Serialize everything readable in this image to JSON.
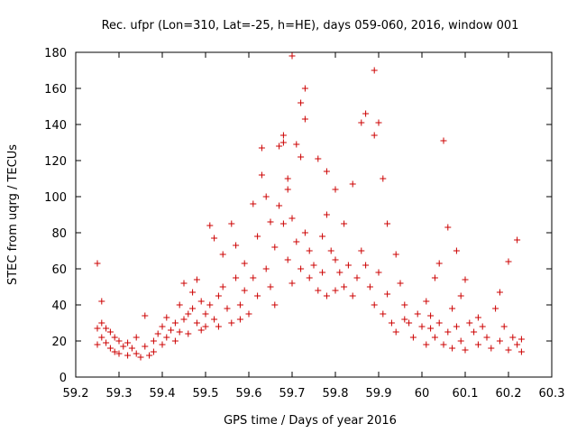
{
  "chart_data": {
    "type": "scatter",
    "title": "Rec. ufpr (Lon=310, Lat=-25, h=HE), days 059-060, 2016, window 001",
    "xlabel": "GPS time / Days of year 2016",
    "ylabel": "STEC from uqrg / TECUs",
    "xlim": [
      59.2,
      60.3
    ],
    "ylim": [
      0,
      180
    ],
    "xticks": [
      "59.2",
      "59.3",
      "59.4",
      "59.5",
      "59.6",
      "59.7",
      "59.8",
      "59.9",
      "60",
      "60.1",
      "60.2",
      "60.3"
    ],
    "yticks": [
      "0",
      "20",
      "40",
      "60",
      "80",
      "100",
      "120",
      "140",
      "160",
      "180"
    ],
    "grid": false,
    "legend": "none",
    "marker": "+",
    "series": [
      {
        "color": "#cc0000",
        "points": [
          [
            59.25,
            63
          ],
          [
            59.25,
            27
          ],
          [
            59.25,
            18
          ],
          [
            59.26,
            42
          ],
          [
            59.26,
            30
          ],
          [
            59.26,
            22
          ],
          [
            59.27,
            27
          ],
          [
            59.27,
            19
          ],
          [
            59.28,
            25
          ],
          [
            59.28,
            16
          ],
          [
            59.29,
            22
          ],
          [
            59.29,
            14
          ],
          [
            59.3,
            20
          ],
          [
            59.3,
            13
          ],
          [
            59.31,
            17
          ],
          [
            59.32,
            19
          ],
          [
            59.32,
            12
          ],
          [
            59.33,
            16
          ],
          [
            59.34,
            22
          ],
          [
            59.34,
            13
          ],
          [
            59.35,
            11
          ],
          [
            59.36,
            17
          ],
          [
            59.36,
            34
          ],
          [
            59.37,
            12
          ],
          [
            59.38,
            20
          ],
          [
            59.38,
            14
          ],
          [
            59.39,
            24
          ],
          [
            59.4,
            18
          ],
          [
            59.4,
            28
          ],
          [
            59.41,
            33
          ],
          [
            59.41,
            22
          ],
          [
            59.42,
            26
          ],
          [
            59.43,
            30
          ],
          [
            59.43,
            20
          ],
          [
            59.44,
            40
          ],
          [
            59.44,
            25
          ],
          [
            59.45,
            52
          ],
          [
            59.45,
            32
          ],
          [
            59.46,
            35
          ],
          [
            59.46,
            24
          ],
          [
            59.47,
            38
          ],
          [
            59.47,
            47
          ],
          [
            59.48,
            30
          ],
          [
            59.48,
            54
          ],
          [
            59.49,
            42
          ],
          [
            59.49,
            26
          ],
          [
            59.5,
            35
          ],
          [
            59.5,
            28
          ],
          [
            59.51,
            84
          ],
          [
            59.51,
            40
          ],
          [
            59.52,
            77
          ],
          [
            59.52,
            32
          ],
          [
            59.53,
            45
          ],
          [
            59.53,
            28
          ],
          [
            59.54,
            68
          ],
          [
            59.54,
            50
          ],
          [
            59.55,
            38
          ],
          [
            59.56,
            85
          ],
          [
            59.56,
            30
          ],
          [
            59.57,
            73
          ],
          [
            59.57,
            55
          ],
          [
            59.58,
            40
          ],
          [
            59.58,
            32
          ],
          [
            59.59,
            63
          ],
          [
            59.59,
            48
          ],
          [
            59.6,
            35
          ],
          [
            59.61,
            96
          ],
          [
            59.61,
            55
          ],
          [
            59.62,
            78
          ],
          [
            59.62,
            45
          ],
          [
            59.63,
            127
          ],
          [
            59.63,
            112
          ],
          [
            59.64,
            100
          ],
          [
            59.64,
            60
          ],
          [
            59.65,
            86
          ],
          [
            59.65,
            50
          ],
          [
            59.66,
            72
          ],
          [
            59.66,
            40
          ],
          [
            59.67,
            128
          ],
          [
            59.67,
            95
          ],
          [
            59.68,
            134
          ],
          [
            59.68,
            130
          ],
          [
            59.68,
            85
          ],
          [
            59.69,
            110
          ],
          [
            59.69,
            104
          ],
          [
            59.69,
            65
          ],
          [
            59.7,
            178
          ],
          [
            59.7,
            88
          ],
          [
            59.7,
            52
          ],
          [
            59.71,
            129
          ],
          [
            59.71,
            75
          ],
          [
            59.72,
            152
          ],
          [
            59.72,
            122
          ],
          [
            59.72,
            60
          ],
          [
            59.73,
            160
          ],
          [
            59.73,
            143
          ],
          [
            59.73,
            80
          ],
          [
            59.74,
            70
          ],
          [
            59.74,
            55
          ],
          [
            59.75,
            62
          ],
          [
            59.76,
            121
          ],
          [
            59.76,
            48
          ],
          [
            59.77,
            78
          ],
          [
            59.77,
            58
          ],
          [
            59.78,
            114
          ],
          [
            59.78,
            90
          ],
          [
            59.78,
            45
          ],
          [
            59.79,
            70
          ],
          [
            59.8,
            104
          ],
          [
            59.8,
            65
          ],
          [
            59.8,
            48
          ],
          [
            59.81,
            58
          ],
          [
            59.82,
            85
          ],
          [
            59.82,
            50
          ],
          [
            59.83,
            62
          ],
          [
            59.84,
            107
          ],
          [
            59.84,
            45
          ],
          [
            59.85,
            55
          ],
          [
            59.86,
            141
          ],
          [
            59.86,
            70
          ],
          [
            59.87,
            146
          ],
          [
            59.87,
            62
          ],
          [
            59.88,
            50
          ],
          [
            59.89,
            170
          ],
          [
            59.89,
            134
          ],
          [
            59.89,
            40
          ],
          [
            59.9,
            141
          ],
          [
            59.9,
            58
          ],
          [
            59.91,
            110
          ],
          [
            59.91,
            35
          ],
          [
            59.92,
            85
          ],
          [
            59.92,
            46
          ],
          [
            59.93,
            30
          ],
          [
            59.94,
            68
          ],
          [
            59.94,
            25
          ],
          [
            59.95,
            52
          ],
          [
            59.96,
            40
          ],
          [
            59.96,
            32
          ],
          [
            59.97,
            30
          ],
          [
            59.98,
            22
          ],
          [
            59.99,
            35
          ],
          [
            60.0,
            28
          ],
          [
            60.01,
            42
          ],
          [
            60.01,
            18
          ],
          [
            60.02,
            34
          ],
          [
            60.02,
            27
          ],
          [
            60.03,
            55
          ],
          [
            60.03,
            22
          ],
          [
            60.04,
            63
          ],
          [
            60.04,
            30
          ],
          [
            60.05,
            131
          ],
          [
            60.05,
            18
          ],
          [
            60.06,
            83
          ],
          [
            60.06,
            25
          ],
          [
            60.07,
            38
          ],
          [
            60.07,
            16
          ],
          [
            60.08,
            70
          ],
          [
            60.08,
            28
          ],
          [
            60.09,
            45
          ],
          [
            60.09,
            20
          ],
          [
            60.1,
            54
          ],
          [
            60.1,
            15
          ],
          [
            60.11,
            30
          ],
          [
            60.12,
            25
          ],
          [
            60.13,
            33
          ],
          [
            60.13,
            18
          ],
          [
            60.14,
            28
          ],
          [
            60.15,
            22
          ],
          [
            60.16,
            16
          ],
          [
            60.17,
            38
          ],
          [
            60.18,
            47
          ],
          [
            60.18,
            20
          ],
          [
            60.19,
            28
          ],
          [
            60.2,
            64
          ],
          [
            60.2,
            15
          ],
          [
            60.21,
            22
          ],
          [
            60.22,
            76
          ],
          [
            60.22,
            18
          ],
          [
            60.23,
            21
          ],
          [
            60.23,
            14
          ]
        ]
      }
    ]
  }
}
